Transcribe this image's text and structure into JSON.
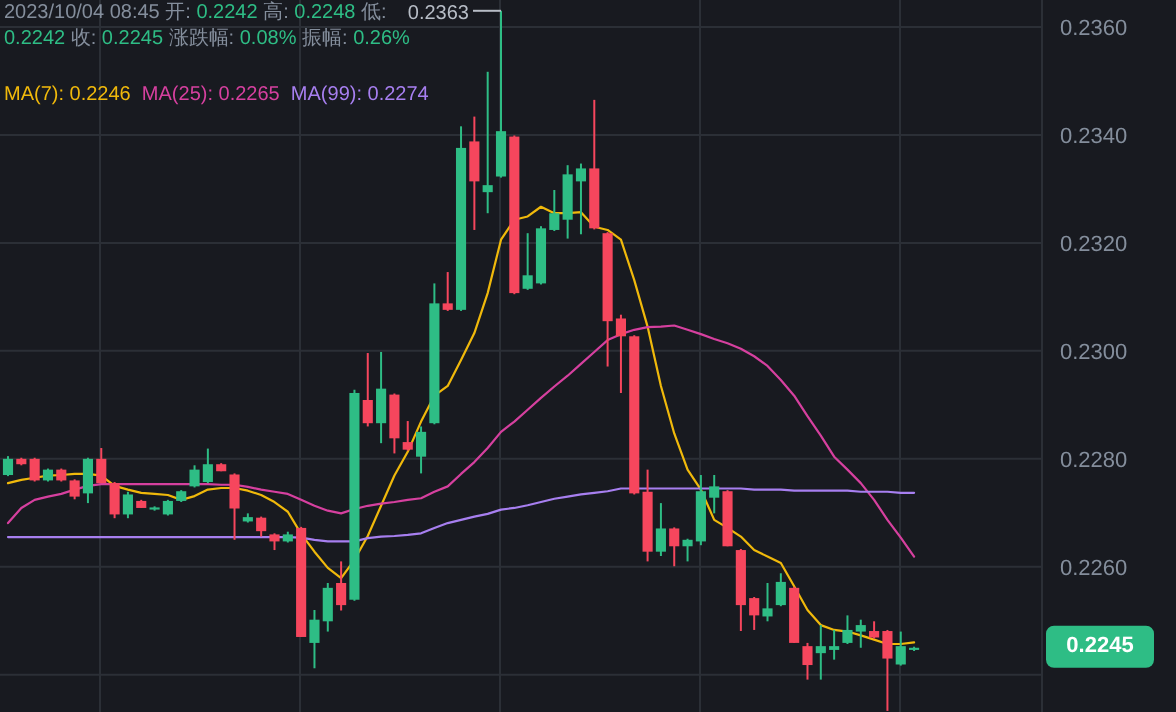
{
  "chart_data": {
    "type": "candlestick",
    "title": "2023/10/04 08:45 开: 0.2242 高: 0.2248 低: 0.2242 收: 0.2245 涨跌幅: 0.08% 振幅: 0.26%",
    "categories": [
      null,
      null,
      null,
      null,
      null,
      null,
      null,
      null,
      null,
      null,
      null,
      null,
      null,
      null,
      null,
      null,
      null,
      null,
      null,
      null,
      null,
      null,
      null,
      null,
      null,
      null,
      null,
      null,
      null,
      null,
      null,
      null,
      null,
      null,
      null,
      null,
      null,
      null,
      null,
      null,
      null,
      null,
      null,
      null,
      null,
      null,
      null,
      null,
      null,
      null,
      null,
      null,
      null,
      null,
      null,
      null,
      null,
      null,
      null,
      null,
      null,
      null,
      null,
      null,
      null,
      null,
      null,
      null,
      null
    ],
    "ohlc": [
      [
        0.2277,
        0.22805,
        0.22768,
        0.228
      ],
      [
        0.228,
        0.22802,
        0.22788,
        0.2279
      ],
      [
        0.228,
        0.22802,
        0.22758,
        0.2276
      ],
      [
        0.2276,
        0.22782,
        0.22758,
        0.2278
      ],
      [
        0.2278,
        0.22782,
        0.22758,
        0.2276
      ],
      [
        0.2276,
        0.22762,
        0.22725,
        0.2273
      ],
      [
        0.22736,
        0.22802,
        0.22718,
        0.228
      ],
      [
        0.228,
        0.2282,
        0.22755,
        0.22755
      ],
      [
        0.22755,
        0.22757,
        0.2269,
        0.22697
      ],
      [
        0.22697,
        0.22739,
        0.2269,
        0.22734
      ],
      [
        0.22722,
        0.22724,
        0.22709,
        0.22709
      ],
      [
        0.22706,
        0.22712,
        0.22704,
        0.2271
      ],
      [
        0.22697,
        0.22724,
        0.22695,
        0.22722
      ],
      [
        0.22722,
        0.22742,
        0.2272,
        0.2274
      ],
      [
        0.22749,
        0.22788,
        0.22747,
        0.2278
      ],
      [
        0.22757,
        0.22819,
        0.22755,
        0.2279
      ],
      [
        0.2279,
        0.22792,
        0.22777,
        0.22777
      ],
      [
        0.22771,
        0.22773,
        0.2265,
        0.22708
      ],
      [
        0.22684,
        0.22699,
        0.22682,
        0.22692
      ],
      [
        0.22691,
        0.22693,
        0.22656,
        0.22666
      ],
      [
        0.2266,
        0.22662,
        0.22631,
        0.22647
      ],
      [
        0.22647,
        0.22665,
        0.22645,
        0.2266
      ],
      [
        0.22672,
        0.22674,
        0.2247,
        0.2247
      ],
      [
        0.22459,
        0.2252,
        0.22412,
        0.22502
      ],
      [
        0.22499,
        0.2257,
        0.2248,
        0.22561
      ],
      [
        0.2257,
        0.2261,
        0.22519,
        0.22529
      ],
      [
        0.22539,
        0.22928,
        0.22537,
        0.22922
      ],
      [
        0.22909,
        0.22996,
        0.2286,
        0.22866
      ],
      [
        0.22866,
        0.22998,
        0.22829,
        0.2293
      ],
      [
        0.22919,
        0.22921,
        0.2281,
        0.22838
      ],
      [
        0.22831,
        0.2287,
        0.22815,
        0.22817
      ],
      [
        0.22804,
        0.2286,
        0.22773,
        0.2285
      ],
      [
        0.22866,
        0.23125,
        0.22864,
        0.23088
      ],
      [
        0.23088,
        0.23146,
        0.23074,
        0.23076
      ],
      [
        0.23076,
        0.23416,
        0.23074,
        0.23376
      ],
      [
        0.23388,
        0.23434,
        0.23224,
        0.23314
      ],
      [
        0.23294,
        0.23517,
        0.23255,
        0.23307
      ],
      [
        0.23323,
        0.2363,
        0.23321,
        0.23407
      ],
      [
        0.23397,
        0.23399,
        0.23105,
        0.23107
      ],
      [
        0.23115,
        0.23218,
        0.23113,
        0.2314
      ],
      [
        0.23125,
        0.23231,
        0.23123,
        0.23227
      ],
      [
        0.23224,
        0.23298,
        0.23222,
        0.23255
      ],
      [
        0.23243,
        0.23344,
        0.23208,
        0.23327
      ],
      [
        0.23314,
        0.23347,
        0.23216,
        0.23338
      ],
      [
        0.23338,
        0.23465,
        0.23225,
        0.23227
      ],
      [
        0.23218,
        0.2322,
        0.22971,
        0.23055
      ],
      [
        0.2306,
        0.23067,
        0.22922,
        0.23027
      ],
      [
        0.23027,
        0.23029,
        0.22734,
        0.22736
      ],
      [
        0.22739,
        0.2278,
        0.2261,
        0.22628
      ],
      [
        0.22628,
        0.22718,
        0.2262,
        0.22671
      ],
      [
        0.22671,
        0.22673,
        0.22601,
        0.22638
      ],
      [
        0.22638,
        0.22652,
        0.2261,
        0.2265
      ],
      [
        0.22647,
        0.2277,
        0.2264,
        0.2274
      ],
      [
        0.22728,
        0.2277,
        0.22699,
        0.22749
      ],
      [
        0.2274,
        0.22742,
        0.22638,
        0.22638
      ],
      [
        0.22631,
        0.22633,
        0.22481,
        0.22529
      ],
      [
        0.22542,
        0.22544,
        0.22483,
        0.2251
      ],
      [
        0.22508,
        0.2257,
        0.22499,
        0.22523
      ],
      [
        0.22529,
        0.22588,
        0.22527,
        0.22572
      ],
      [
        0.22561,
        0.22563,
        0.22459,
        0.22459
      ],
      [
        0.22453,
        0.22459,
        0.22391,
        0.22418
      ],
      [
        0.2244,
        0.22492,
        0.22391,
        0.22453
      ],
      [
        0.22446,
        0.22483,
        0.22428,
        0.22453
      ],
      [
        0.22459,
        0.2251,
        0.22457,
        0.22483
      ],
      [
        0.2248,
        0.22502,
        0.2245,
        0.22492
      ],
      [
        0.22481,
        0.22499,
        0.22467,
        0.22469
      ],
      [
        0.22481,
        0.22483,
        0.22333,
        0.2243
      ],
      [
        0.22419,
        0.2248,
        0.22417,
        0.22453
      ],
      [
        0.22446,
        0.22452,
        0.22444,
        0.2245
      ]
    ],
    "colors": [
      "#2ebd85",
      "#f6465d",
      "#f6465d",
      "#2ebd85",
      "#f6465d",
      "#f6465d",
      "#2ebd85",
      "#f6465d",
      "#f6465d",
      "#2ebd85",
      "#f6465d",
      "#2ebd85",
      "#2ebd85",
      "#2ebd85",
      "#2ebd85",
      "#2ebd85",
      "#f6465d",
      "#f6465d",
      "#2ebd85",
      "#f6465d",
      "#f6465d",
      "#2ebd85",
      "#f6465d",
      "#2ebd85",
      "#2ebd85",
      "#f6465d",
      "#2ebd85",
      "#f6465d",
      "#2ebd85",
      "#f6465d",
      "#f6465d",
      "#2ebd85",
      "#2ebd85",
      "#f6465d",
      "#2ebd85",
      "#f6465d",
      "#2ebd85",
      "#2ebd85",
      "#f6465d",
      "#2ebd85",
      "#2ebd85",
      "#2ebd85",
      "#2ebd85",
      "#2ebd85",
      "#f6465d",
      "#f6465d",
      "#f6465d",
      "#f6465d",
      "#f6465d",
      "#2ebd85",
      "#f6465d",
      "#2ebd85",
      "#2ebd85",
      "#2ebd85",
      "#f6465d",
      "#f6465d",
      "#f6465d",
      "#2ebd85",
      "#2ebd85",
      "#f6465d",
      "#f6465d",
      "#2ebd85",
      "#2ebd85",
      "#2ebd85",
      "#2ebd85",
      "#f6465d",
      "#f6465d",
      "#2ebd85",
      "#2ebd85"
    ],
    "series": [
      {
        "type": "line",
        "name": "MA(7):",
        "color": "#f0b90b",
        "values": [
          0.22755,
          0.22761,
          0.22765,
          0.22769,
          0.2277,
          0.22772,
          0.22772,
          0.22769,
          0.2275,
          0.22743,
          0.22737,
          0.22735,
          0.22733,
          0.22724,
          0.22731,
          0.22743,
          0.22746,
          0.22746,
          0.22741,
          0.22733,
          0.2272,
          0.22702,
          0.22661,
          0.22628,
          0.22598,
          0.22579,
          0.22613,
          0.22657,
          0.22713,
          0.22769,
          0.22813,
          0.22869,
          0.22917,
          0.22935,
          0.22983,
          0.23033,
          0.23107,
          0.23206,
          0.23243,
          0.23249,
          0.23267,
          0.23255,
          0.23255,
          0.23257,
          0.2323,
          0.23224,
          0.23206,
          0.23131,
          0.23045,
          0.22935,
          0.22847,
          0.2278,
          0.22743,
          0.22687,
          0.22672,
          0.22656,
          0.22631,
          0.22619,
          0.22607,
          0.22564,
          0.2252,
          0.22492,
          0.22483,
          0.2248,
          0.22473,
          0.22465,
          0.22457,
          0.22457,
          0.2246
        ]
      },
      {
        "type": "line",
        "name": "MA(25):",
        "color": "#d6409f",
        "values": [
          0.22681,
          0.22709,
          0.22724,
          0.2273,
          0.22735,
          0.22743,
          0.2275,
          0.22753,
          0.22753,
          0.22753,
          0.22753,
          0.22753,
          0.22753,
          0.22753,
          0.22753,
          0.22753,
          0.22752,
          0.22752,
          0.22748,
          0.22743,
          0.22739,
          0.22735,
          0.22724,
          0.22713,
          0.22704,
          0.22699,
          0.22707,
          0.22713,
          0.22717,
          0.2272,
          0.22724,
          0.22727,
          0.22739,
          0.22749,
          0.22772,
          0.22794,
          0.2282,
          0.2285,
          0.22869,
          0.22891,
          0.22913,
          0.22934,
          0.22954,
          0.22976,
          0.22998,
          0.2302,
          0.23031,
          0.23039,
          0.23044,
          0.23045,
          0.23047,
          0.23039,
          0.23031,
          0.23022,
          0.23014,
          0.23004,
          0.2299,
          0.22972,
          0.22946,
          0.22917,
          0.22879,
          0.22843,
          0.22804,
          0.2278,
          0.22755,
          0.22724,
          0.22687,
          0.22654,
          0.22619
        ]
      },
      {
        "type": "line",
        "name": "MA(99):",
        "color": "#a77ff0",
        "values": [
          0.22655,
          0.22655,
          0.22655,
          0.22655,
          0.22655,
          0.22655,
          0.22655,
          0.22655,
          0.22655,
          0.22655,
          0.22655,
          0.22655,
          0.22655,
          0.22655,
          0.22655,
          0.22655,
          0.22655,
          0.22655,
          0.22655,
          0.22655,
          0.22655,
          0.22655,
          0.22654,
          0.2265,
          0.22647,
          0.22647,
          0.22647,
          0.22653,
          0.22656,
          0.22657,
          0.22659,
          0.22662,
          0.22672,
          0.22681,
          0.22687,
          0.22693,
          0.22698,
          0.22706,
          0.22709,
          0.22714,
          0.2272,
          0.22726,
          0.2273,
          0.22734,
          0.22737,
          0.2274,
          0.22745,
          0.22745,
          0.22745,
          0.22745,
          0.22745,
          0.22745,
          0.22745,
          0.22745,
          0.22745,
          0.22745,
          0.22743,
          0.22743,
          0.22743,
          0.22741,
          0.22741,
          0.22741,
          0.22741,
          0.22741,
          0.22739,
          0.22739,
          0.22739,
          0.22737,
          0.22737
        ]
      }
    ],
    "annotations": [
      "0.2363",
      "0.2246",
      "0.2265",
      "0.2274",
      "0.2245"
    ],
    "ylim": [
      0.22331,
      0.2365
    ],
    "yticks": [
      {
        "value": 0.224,
        "label": null
      },
      {
        "value": 0.226,
        "label": "0.2260"
      },
      {
        "value": 0.228,
        "label": "0.2280"
      },
      {
        "value": 0.23,
        "label": "0.2300"
      },
      {
        "value": 0.232,
        "label": "0.2320"
      },
      {
        "value": 0.234,
        "label": "0.2340"
      },
      {
        "value": 0.236,
        "label": "0.2360"
      }
    ],
    "grid": true,
    "legend": "top left",
    "tick_labels": "y"
  }
}
